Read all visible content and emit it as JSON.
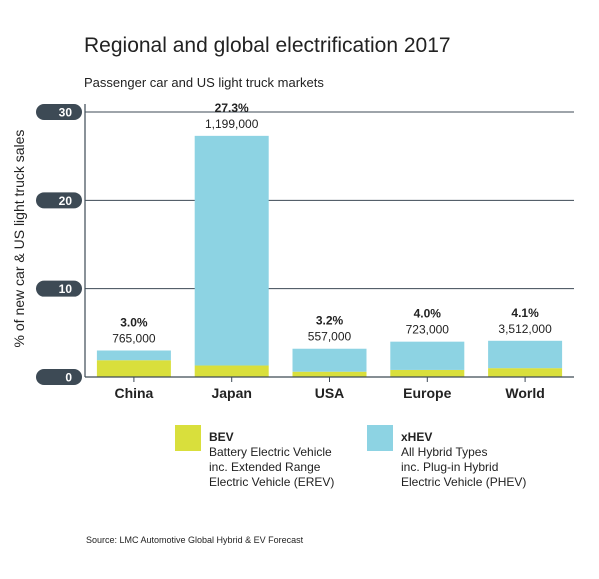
{
  "title": "Regional and global electrification 2017",
  "subtitle": "Passenger car and US light truck markets",
  "source": "Source: LMC Automotive Global Hybrid & EV Forecast",
  "colors": {
    "bev": "#d9df3c",
    "xhev": "#8dd3e3",
    "axis": "#3d4a55",
    "grid": "#3d4a55"
  },
  "legend": [
    {
      "name": "BEV",
      "description": "Battery Electric Vehicle\ninc. Extended Range\nElectric Vehicle (EREV)"
    },
    {
      "name": "xHEV",
      "description": "All Hybrid Types\ninc. Plug-in Hybrid\nElectric Vehicle (PHEV)"
    }
  ],
  "chart_data": {
    "type": "bar",
    "stacked": true,
    "categories": [
      "China",
      "Japan",
      "USA",
      "Europe",
      "World"
    ],
    "series": [
      {
        "name": "BEV",
        "values": [
          1.9,
          1.3,
          0.6,
          0.8,
          1.0
        ]
      },
      {
        "name": "xHEV",
        "values": [
          1.1,
          26.0,
          2.6,
          3.2,
          3.1
        ]
      }
    ],
    "totals_pct": [
      3.0,
      27.3,
      3.2,
      4.0,
      4.1
    ],
    "pct_labels": [
      "3.0%",
      "27.3%",
      "3.2%",
      "4.0%",
      "4.1%"
    ],
    "unit_labels": [
      "765,000",
      "1,199,000",
      "557,000",
      "723,000",
      "3,512,000"
    ],
    "ylabel": "% of new car & US light truck sales",
    "yticks": [
      0,
      10,
      20,
      30
    ],
    "ylim": [
      0,
      30
    ],
    "grid": true
  }
}
